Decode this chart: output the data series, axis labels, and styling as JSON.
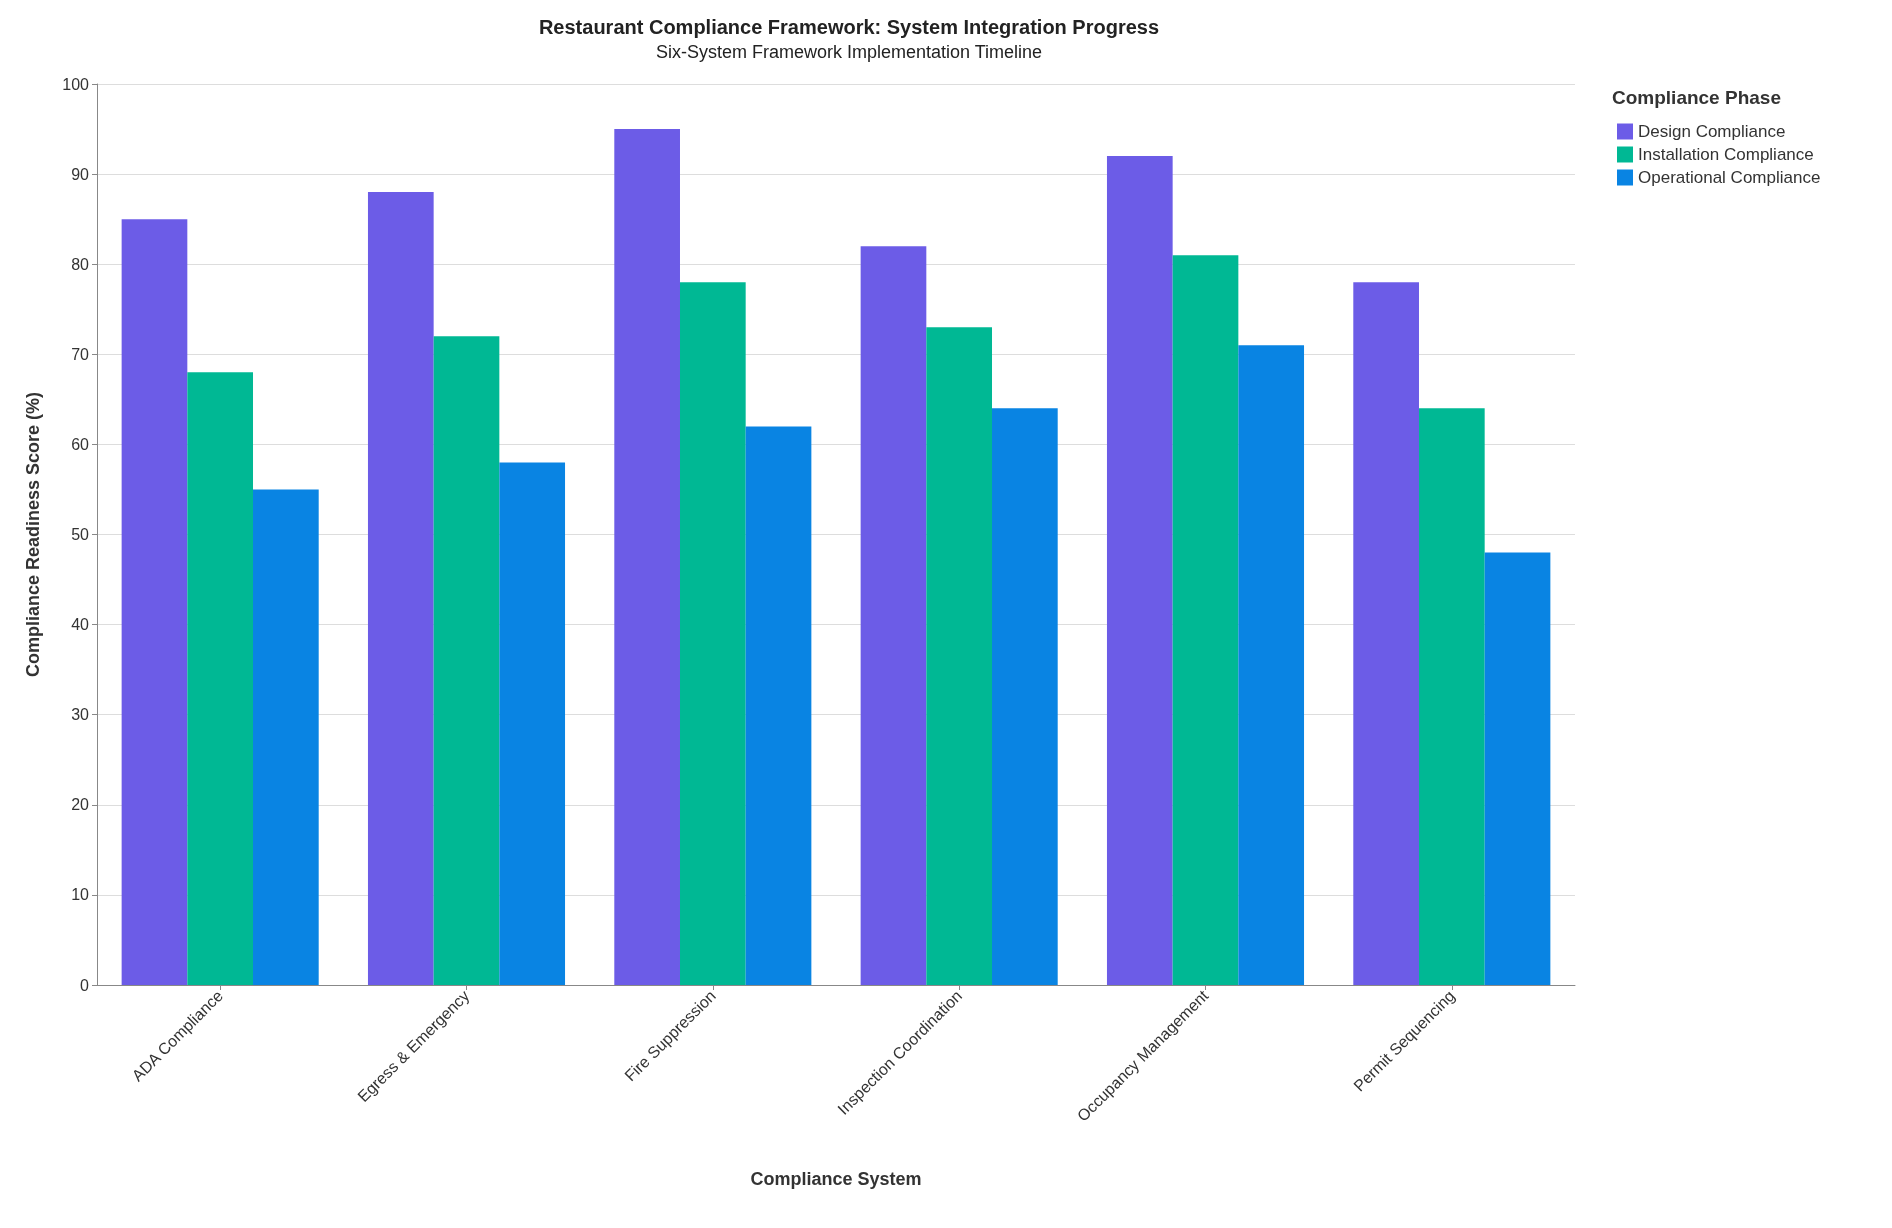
{
  "chart_data": {
    "type": "bar",
    "title": "Restaurant Compliance Framework: System Integration Progress",
    "subtitle": "Six-System Framework Implementation Timeline",
    "xlabel": "Compliance System",
    "ylabel": "Compliance Readiness Score (%)",
    "legend_title": "Compliance Phase",
    "categories": [
      "ADA Compliance",
      "Egress & Emergency",
      "Fire Suppression",
      "Inspection Coordination",
      "Occupancy Management",
      "Permit Sequencing"
    ],
    "series": [
      {
        "name": "Design Compliance",
        "color": "#6c5ce7",
        "values": [
          85,
          88,
          95,
          82,
          92,
          78
        ]
      },
      {
        "name": "Installation Compliance",
        "color": "#00b894",
        "values": [
          68,
          72,
          78,
          73,
          81,
          64
        ]
      },
      {
        "name": "Operational Compliance",
        "color": "#0984e3",
        "values": [
          55,
          58,
          62,
          64,
          71,
          48
        ]
      }
    ],
    "ylim": [
      0,
      100
    ],
    "yticks": [
      0,
      10,
      20,
      30,
      40,
      50,
      60,
      70,
      80,
      90,
      100
    ],
    "grid": "y",
    "legend": "top right"
  }
}
